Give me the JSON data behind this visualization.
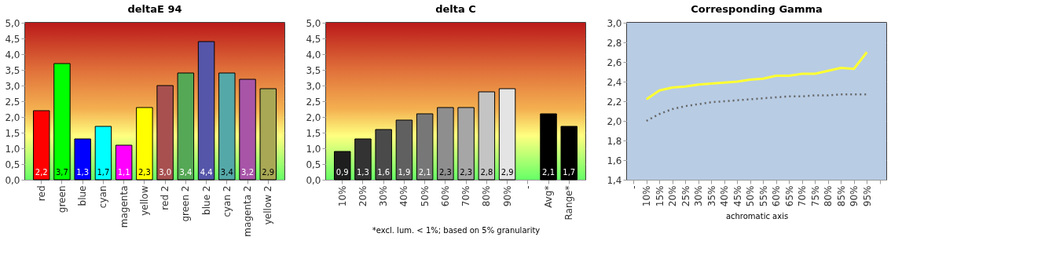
{
  "chart_data": [
    {
      "type": "bar",
      "title": "deltaE 94",
      "categories": [
        "red",
        "green",
        "blue",
        "cyan",
        "magenta",
        "yellow",
        "red 2",
        "green 2",
        "blue 2",
        "cyan 2",
        "magenta 2",
        "yellow 2"
      ],
      "values": [
        2.2,
        3.7,
        1.3,
        1.7,
        1.1,
        2.3,
        3.0,
        3.4,
        4.4,
        3.4,
        3.2,
        2.9
      ],
      "value_labels": [
        "2,2",
        "3,7",
        "1,3",
        "1,7",
        "1,1",
        "2,3",
        "3,0",
        "3,4",
        "4,4",
        "3,4",
        "3,2",
        "2,9"
      ],
      "colors": [
        "#ff0000",
        "#00ff00",
        "#0000ff",
        "#00ffff",
        "#ff00ff",
        "#ffff00",
        "#a85050",
        "#55a855",
        "#5555aa",
        "#55a8a8",
        "#a855a8",
        "#a8a855"
      ],
      "ylim": [
        0,
        5
      ],
      "yticks": [
        {
          "value": 0,
          "label": "0,0"
        },
        {
          "value": 0.5,
          "label": "0,5"
        },
        {
          "value": 1,
          "label": "1,0"
        },
        {
          "value": 1.5,
          "label": "1,5"
        },
        {
          "value": 2,
          "label": "2,0"
        },
        {
          "value": 2.5,
          "label": "2,5"
        },
        {
          "value": 3,
          "label": "3,0"
        },
        {
          "value": 3.5,
          "label": "3,5"
        },
        {
          "value": 4,
          "label": "4,0"
        },
        {
          "value": 4.5,
          "label": "4,5"
        },
        {
          "value": 5,
          "label": "5,0"
        }
      ],
      "grid": "y"
    },
    {
      "type": "bar",
      "title": "delta C",
      "categories": [
        "10%",
        "20%",
        "30%",
        "40%",
        "50%",
        "60%",
        "70%",
        "80%",
        "90%",
        "-",
        "Avg*",
        "Range*"
      ],
      "values": [
        0.9,
        1.3,
        1.6,
        1.9,
        2.1,
        2.3,
        2.3,
        2.8,
        2.9,
        null,
        2.1,
        1.7
      ],
      "value_labels": [
        "0,9",
        "1,3",
        "1,6",
        "1,9",
        "2,1",
        "2,3",
        "2,3",
        "2,8",
        "2,9",
        null,
        "2,1",
        "1,7"
      ],
      "colors": [
        "#1e1e1e",
        "#333333",
        "#4a4a4a",
        "#606060",
        "#777777",
        "#8e8e8e",
        "#a6a6a6",
        "#c4c4c4",
        "#e4e4e4",
        "#000000",
        "#000000",
        "#000000"
      ],
      "ylim": [
        0,
        5
      ],
      "yticks": [
        {
          "value": 0,
          "label": "0,0"
        },
        {
          "value": 0.5,
          "label": "0,5"
        },
        {
          "value": 1,
          "label": "1,0"
        },
        {
          "value": 1.5,
          "label": "1,5"
        },
        {
          "value": 2,
          "label": "2,0"
        },
        {
          "value": 2.5,
          "label": "2,5"
        },
        {
          "value": 3,
          "label": "3,0"
        },
        {
          "value": 3.5,
          "label": "3,5"
        },
        {
          "value": 4,
          "label": "4,0"
        },
        {
          "value": 4.5,
          "label": "4,5"
        },
        {
          "value": 5,
          "label": "5,0"
        }
      ],
      "annotations": [
        "*excl. lum. < 1%; based on 5% granularity"
      ],
      "grid": "y"
    },
    {
      "type": "line",
      "title": "Corresponding Gamma",
      "xlabel": "achromatic axis",
      "categories": [
        "-",
        "10%",
        "15%",
        "20%",
        "25%",
        "30%",
        "35%",
        "40%",
        "45%",
        "50%",
        "55%",
        "60%",
        "65%",
        "70%",
        "75%",
        "80%",
        "85%",
        "90%",
        "95%",
        null
      ],
      "series": [
        {
          "color": "#ffff33",
          "line_style": "solid",
          "values": [
            null,
            2.22,
            2.31,
            2.34,
            2.35,
            2.37,
            2.38,
            2.39,
            2.4,
            2.42,
            2.43,
            2.46,
            2.46,
            2.48,
            2.48,
            2.51,
            2.54,
            2.53,
            2.7,
            null
          ]
        },
        {
          "color": "#666666",
          "line_style": "dotted",
          "values": [
            null,
            2.0,
            2.07,
            2.12,
            2.15,
            2.17,
            2.19,
            2.2,
            2.21,
            2.22,
            2.23,
            2.24,
            2.25,
            2.25,
            2.26,
            2.26,
            2.27,
            2.27,
            2.27,
            null
          ]
        }
      ],
      "ylim": [
        1.4,
        3.0
      ],
      "yticks": [
        {
          "value": 1.4,
          "label": "1,4"
        },
        {
          "value": 1.6,
          "label": "1,6"
        },
        {
          "value": 1.8,
          "label": "1,8"
        },
        {
          "value": 2.0,
          "label": "2,0"
        },
        {
          "value": 2.2,
          "label": "2,2"
        },
        {
          "value": 2.4,
          "label": "2,4"
        },
        {
          "value": 2.6,
          "label": "2,6"
        },
        {
          "value": 2.8,
          "label": "2,8"
        },
        {
          "value": 3.0,
          "label": "3,0"
        }
      ],
      "grid": true,
      "marker": "none"
    }
  ]
}
